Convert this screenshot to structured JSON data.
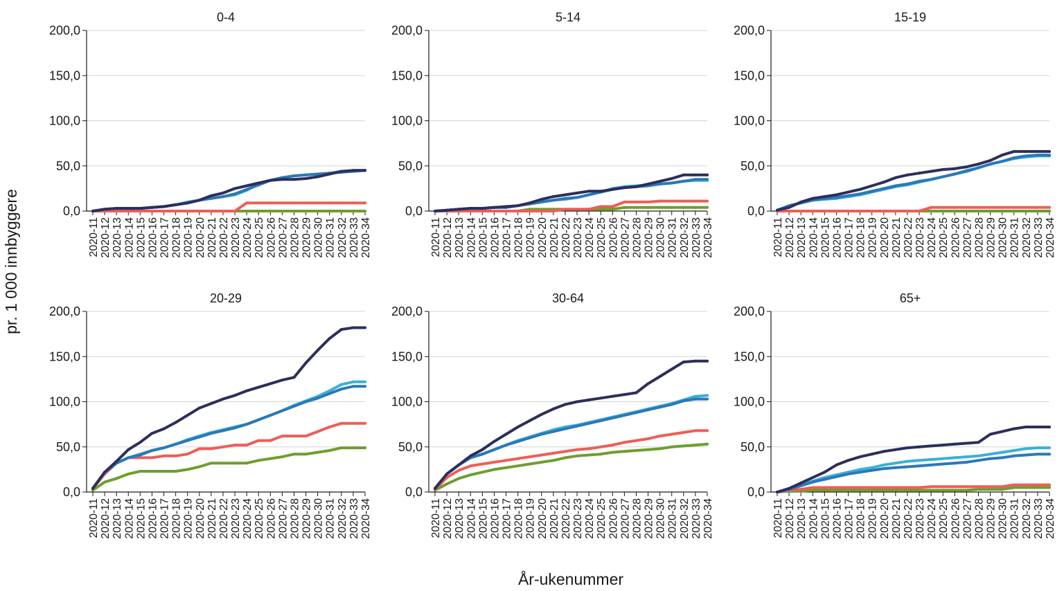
{
  "figure": {
    "ylabel": "pr. 1 000 innbyggere",
    "xlabel": "År-ukenummer"
  },
  "colors": {
    "series_1": "#2d2e5c",
    "series_2": "#2a79b8",
    "series_3": "#3ab0d8",
    "series_4": "#ee5e57",
    "series_5": "#6e9e2e",
    "grid": "#d4d4d4",
    "axis": "#1a1a1a"
  },
  "chart_data": [
    {
      "type": "line",
      "title": "0-4",
      "ylim": [
        0,
        200
      ],
      "yticks": [
        "0,0",
        "50,0",
        "100,0",
        "150,0",
        "200,0"
      ],
      "grid": true,
      "x": [
        "2020-11",
        "2020-12",
        "2020-13",
        "2020-14",
        "2020-15",
        "2020-16",
        "2020-17",
        "2020-18",
        "2020-19",
        "2020-20",
        "2020-21",
        "2020-22",
        "2020-23",
        "2020-24",
        "2020-25",
        "2020-26",
        "2020-27",
        "2020-28",
        "2020-29",
        "2020-30",
        "2020-31",
        "2020-32",
        "2020-33",
        "2020-34"
      ],
      "series": [
        {
          "color_key": "series_1",
          "values": [
            0,
            2,
            3,
            3,
            3,
            4,
            5,
            7,
            9,
            12,
            17,
            20,
            25,
            28,
            31,
            34,
            35,
            35,
            36,
            38,
            41,
            44,
            45,
            45
          ]
        },
        {
          "color_key": "series_2",
          "values": [
            0,
            2,
            3,
            3,
            3,
            4,
            5,
            7,
            9,
            12,
            14,
            16,
            19,
            24,
            29,
            34,
            37,
            39,
            40,
            41,
            42,
            43,
            44,
            45
          ]
        },
        {
          "color_key": "series_3",
          "values": [
            0,
            2,
            3,
            3,
            3,
            4,
            5,
            7,
            10,
            12,
            14,
            16,
            18,
            23,
            30,
            34,
            37,
            39,
            40,
            41,
            42,
            44,
            45,
            45
          ]
        },
        {
          "color_key": "series_4",
          "values": [
            0,
            0,
            0,
            0,
            0,
            0,
            0,
            0,
            0,
            0,
            0,
            0,
            0,
            9,
            9,
            9,
            9,
            9,
            9,
            9,
            9,
            9,
            9,
            9
          ]
        },
        {
          "color_key": "series_5",
          "values": [
            0,
            0,
            0,
            0,
            0,
            0,
            0,
            0,
            0,
            0,
            0,
            0,
            0,
            0,
            0,
            0,
            0,
            0,
            0,
            0,
            0,
            0,
            0,
            0
          ]
        }
      ]
    },
    {
      "type": "line",
      "title": "5-14",
      "ylim": [
        0,
        200
      ],
      "yticks": [
        "0,0",
        "50,0",
        "100,0",
        "150,0",
        "200,0"
      ],
      "grid": true,
      "x": [
        "2020-11",
        "2020-12",
        "2020-13",
        "2020-14",
        "2020-15",
        "2020-16",
        "2020-17",
        "2020-18",
        "2020-19",
        "2020-20",
        "2020-21",
        "2020-22",
        "2020-23",
        "2020-24",
        "2020-25",
        "2020-26",
        "2020-27",
        "2020-28",
        "2020-29",
        "2020-30",
        "2020-31",
        "2020-32",
        "2020-33",
        "2020-34"
      ],
      "series": [
        {
          "color_key": "series_1",
          "values": [
            0,
            1,
            2,
            3,
            3,
            4,
            5,
            6,
            9,
            13,
            16,
            18,
            20,
            22,
            22,
            24,
            26,
            27,
            30,
            33,
            36,
            40,
            40,
            40
          ]
        },
        {
          "color_key": "series_2",
          "values": [
            0,
            1,
            2,
            3,
            3,
            4,
            4,
            6,
            8,
            10,
            12,
            14,
            15,
            18,
            21,
            24,
            26,
            27,
            28,
            30,
            31,
            33,
            35,
            35
          ]
        },
        {
          "color_key": "series_3",
          "values": [
            0,
            1,
            2,
            3,
            3,
            4,
            4,
            6,
            8,
            10,
            12,
            13,
            15,
            18,
            21,
            25,
            27,
            28,
            29,
            30,
            31,
            33,
            34,
            34
          ]
        },
        {
          "color_key": "series_4",
          "values": [
            0,
            0,
            0,
            0,
            0,
            0,
            0,
            0,
            0,
            0,
            0,
            2,
            2,
            2,
            5,
            5,
            10,
            10,
            10,
            11,
            11,
            11,
            11,
            11
          ]
        },
        {
          "color_key": "series_5",
          "values": [
            0,
            0,
            0,
            0,
            0,
            0,
            0,
            0,
            2,
            2,
            2,
            2,
            2,
            2,
            2,
            2,
            4,
            4,
            4,
            4,
            4,
            4,
            4,
            4
          ]
        }
      ]
    },
    {
      "type": "line",
      "title": "15-19",
      "ylim": [
        0,
        200
      ],
      "yticks": [
        "0,0",
        "50,0",
        "100,0",
        "150,0",
        "200,0"
      ],
      "grid": true,
      "x": [
        "2020-11",
        "2020-12",
        "2020-13",
        "2020-14",
        "2020-15",
        "2020-16",
        "2020-17",
        "2020-18",
        "2020-19",
        "2020-20",
        "2020-21",
        "2020-22",
        "2020-23",
        "2020-24",
        "2020-25",
        "2020-26",
        "2020-27",
        "2020-28",
        "2020-29",
        "2020-30",
        "2020-31",
        "2020-32",
        "2020-33",
        "2020-34"
      ],
      "series": [
        {
          "color_key": "series_1",
          "values": [
            1,
            4,
            10,
            14,
            16,
            18,
            21,
            24,
            28,
            32,
            37,
            40,
            42,
            44,
            46,
            47,
            49,
            52,
            56,
            62,
            66,
            66,
            66,
            66
          ]
        },
        {
          "color_key": "series_2",
          "values": [
            1,
            6,
            9,
            12,
            14,
            15,
            17,
            19,
            22,
            25,
            28,
            30,
            33,
            35,
            38,
            41,
            44,
            48,
            52,
            55,
            59,
            61,
            62,
            62
          ]
        },
        {
          "color_key": "series_3",
          "values": [
            1,
            6,
            9,
            12,
            13,
            14,
            16,
            18,
            21,
            24,
            27,
            29,
            32,
            35,
            38,
            41,
            45,
            48,
            52,
            55,
            58,
            60,
            61,
            61
          ]
        },
        {
          "color_key": "series_4",
          "values": [
            0,
            0,
            0,
            0,
            0,
            0,
            0,
            0,
            0,
            0,
            0,
            0,
            0,
            4,
            4,
            4,
            4,
            4,
            4,
            4,
            4,
            4,
            4,
            4
          ]
        },
        {
          "color_key": "series_5",
          "values": [
            0,
            0,
            0,
            0,
            0,
            0,
            0,
            0,
            0,
            0,
            0,
            0,
            0,
            0,
            0,
            0,
            0,
            0,
            0,
            0,
            0,
            0,
            0,
            0
          ]
        }
      ]
    },
    {
      "type": "line",
      "title": "20-29",
      "ylim": [
        0,
        200
      ],
      "yticks": [
        "0,0",
        "50,0",
        "100,0",
        "150,0",
        "200,0"
      ],
      "grid": true,
      "x": [
        "2020-11",
        "2020-12",
        "2020-13",
        "2020-14",
        "2020-15",
        "2020-16",
        "2020-17",
        "2020-18",
        "2020-19",
        "2020-20",
        "2020-21",
        "2020-22",
        "2020-23",
        "2020-24",
        "2020-25",
        "2020-26",
        "2020-27",
        "2020-28",
        "2020-29",
        "2020-30",
        "2020-31",
        "2020-32",
        "2020-33",
        "2020-34"
      ],
      "series": [
        {
          "color_key": "series_1",
          "values": [
            4,
            22,
            34,
            47,
            55,
            65,
            70,
            77,
            85,
            93,
            98,
            103,
            107,
            112,
            116,
            120,
            124,
            127,
            143,
            157,
            170,
            180,
            182,
            182
          ]
        },
        {
          "color_key": "series_2",
          "values": [
            4,
            22,
            32,
            38,
            41,
            46,
            49,
            53,
            57,
            61,
            65,
            68,
            71,
            75,
            80,
            85,
            90,
            95,
            100,
            104,
            109,
            114,
            117,
            117
          ]
        },
        {
          "color_key": "series_3",
          "values": [
            4,
            22,
            32,
            38,
            42,
            46,
            49,
            53,
            58,
            62,
            66,
            69,
            72,
            75,
            80,
            85,
            90,
            96,
            101,
            106,
            112,
            119,
            122,
            122
          ]
        },
        {
          "color_key": "series_4",
          "values": [
            4,
            20,
            32,
            38,
            38,
            38,
            40,
            40,
            42,
            48,
            48,
            50,
            52,
            52,
            57,
            57,
            62,
            62,
            62,
            67,
            72,
            76,
            76,
            76
          ]
        },
        {
          "color_key": "series_5",
          "values": [
            2,
            11,
            15,
            20,
            23,
            23,
            23,
            23,
            25,
            28,
            32,
            32,
            32,
            32,
            35,
            37,
            39,
            42,
            42,
            44,
            46,
            49,
            49,
            49
          ]
        }
      ]
    },
    {
      "type": "line",
      "title": "30-64",
      "ylim": [
        0,
        200
      ],
      "yticks": [
        "0,0",
        "50,0",
        "100,0",
        "150,0",
        "200,0"
      ],
      "grid": true,
      "x": [
        "2020-11",
        "2020-12",
        "2020-13",
        "2020-14",
        "2020-15",
        "2020-16",
        "2020-17",
        "2020-18",
        "2020-19",
        "2020-20",
        "2020-21",
        "2020-22",
        "2020-23",
        "2020-24",
        "2020-25",
        "2020-26",
        "2020-27",
        "2020-28",
        "2020-29",
        "2020-30",
        "2020-31",
        "2020-32",
        "2020-33",
        "2020-34"
      ],
      "series": [
        {
          "color_key": "series_1",
          "values": [
            4,
            20,
            30,
            40,
            47,
            56,
            64,
            72,
            79,
            86,
            92,
            97,
            100,
            102,
            104,
            106,
            108,
            110,
            120,
            128,
            136,
            144,
            145,
            145
          ]
        },
        {
          "color_key": "series_2",
          "values": [
            4,
            20,
            30,
            38,
            42,
            47,
            52,
            56,
            60,
            64,
            67,
            70,
            73,
            76,
            79,
            82,
            85,
            88,
            91,
            94,
            97,
            101,
            103,
            103
          ]
        },
        {
          "color_key": "series_3",
          "values": [
            4,
            20,
            30,
            38,
            42,
            47,
            52,
            57,
            61,
            65,
            69,
            72,
            74,
            77,
            80,
            83,
            86,
            89,
            92,
            95,
            98,
            102,
            106,
            107
          ]
        },
        {
          "color_key": "series_4",
          "values": [
            3,
            16,
            24,
            29,
            31,
            33,
            35,
            37,
            39,
            41,
            43,
            45,
            47,
            48,
            50,
            52,
            55,
            57,
            59,
            62,
            64,
            66,
            68,
            68
          ]
        },
        {
          "color_key": "series_5",
          "values": [
            2,
            9,
            15,
            19,
            22,
            25,
            27,
            29,
            31,
            33,
            35,
            38,
            40,
            41,
            42,
            44,
            45,
            46,
            47,
            48,
            50,
            51,
            52,
            53
          ]
        }
      ]
    },
    {
      "type": "line",
      "title": "65+",
      "ylim": [
        0,
        200
      ],
      "yticks": [
        "0,0",
        "50,0",
        "100,0",
        "150,0",
        "200,0"
      ],
      "grid": true,
      "x": [
        "2020-11",
        "2020-12",
        "2020-13",
        "2020-14",
        "2020-15",
        "2020-16",
        "2020-17",
        "2020-18",
        "2020-19",
        "2020-20",
        "2020-21",
        "2020-22",
        "2020-23",
        "2020-24",
        "2020-25",
        "2020-26",
        "2020-27",
        "2020-28",
        "2020-29",
        "2020-30",
        "2020-31",
        "2020-32",
        "2020-33",
        "2020-34"
      ],
      "series": [
        {
          "color_key": "series_1",
          "values": [
            0,
            4,
            10,
            16,
            22,
            30,
            35,
            39,
            42,
            45,
            47,
            49,
            50,
            51,
            52,
            53,
            54,
            55,
            64,
            67,
            70,
            72,
            72,
            72
          ]
        },
        {
          "color_key": "series_2",
          "values": [
            0,
            3,
            7,
            11,
            14,
            17,
            20,
            22,
            24,
            26,
            27,
            28,
            29,
            30,
            31,
            32,
            33,
            35,
            37,
            38,
            40,
            41,
            42,
            42
          ]
        },
        {
          "color_key": "series_3",
          "values": [
            0,
            3,
            8,
            12,
            16,
            19,
            22,
            25,
            27,
            30,
            32,
            34,
            35,
            36,
            37,
            38,
            39,
            40,
            42,
            44,
            46,
            48,
            49,
            49
          ]
        },
        {
          "color_key": "series_4",
          "values": [
            0,
            2,
            3,
            5,
            5,
            5,
            5,
            5,
            5,
            5,
            5,
            5,
            5,
            6,
            6,
            6,
            6,
            6,
            6,
            6,
            8,
            8,
            8,
            8
          ]
        },
        {
          "color_key": "series_5",
          "values": [
            0,
            1,
            1,
            2,
            2,
            2,
            2,
            2,
            2,
            2,
            2,
            2,
            2,
            2,
            2,
            2,
            2,
            3,
            3,
            3,
            5,
            5,
            5,
            5
          ]
        }
      ]
    }
  ]
}
